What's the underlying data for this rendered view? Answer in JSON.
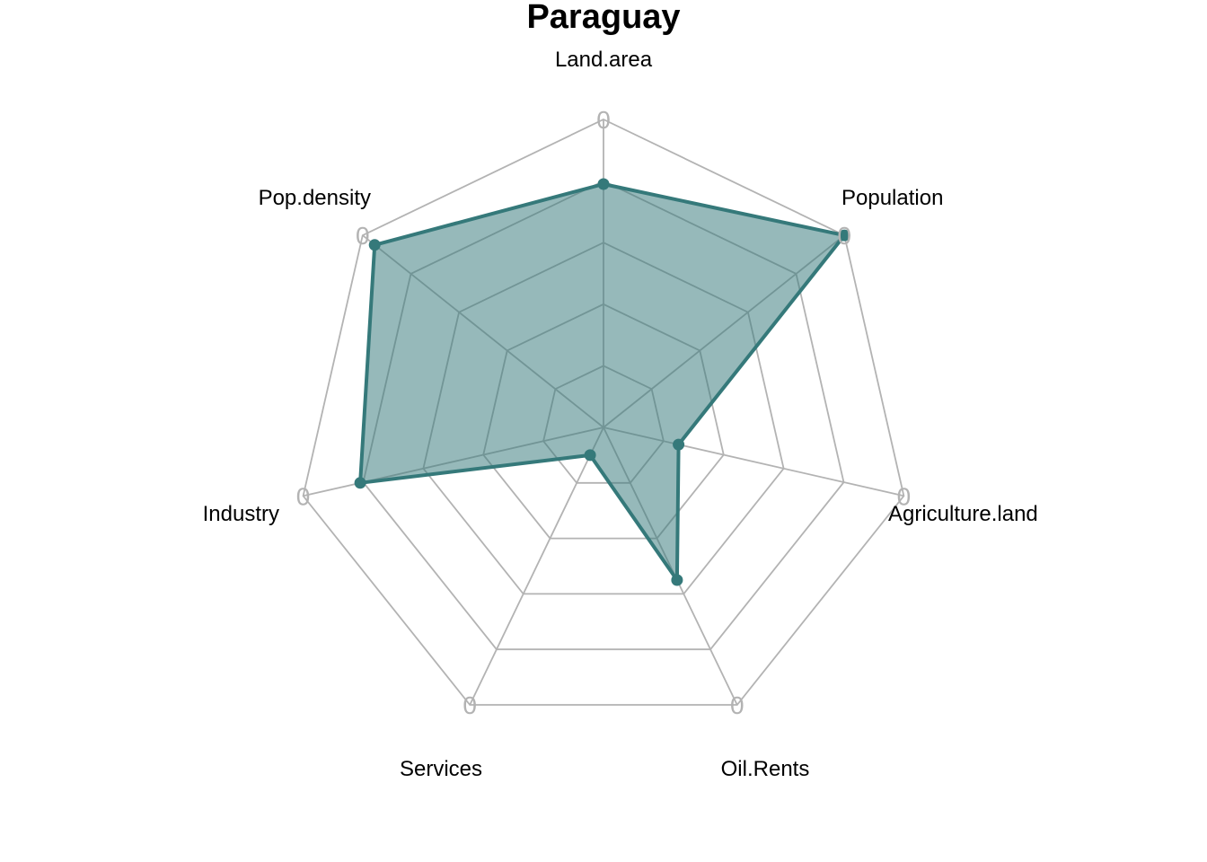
{
  "chart_data": {
    "type": "radar",
    "title": "Paraguay",
    "axes": [
      "Land.area",
      "Population",
      "Agriculture.land",
      "Oil.Rents",
      "Services",
      "Industry",
      "Pop.density"
    ],
    "grid_levels": 5,
    "grid_tick_label": "0",
    "range": [
      0,
      1
    ],
    "series": [
      {
        "values": [
          0.79,
          1.0,
          0.25,
          0.55,
          0.1,
          0.81,
          0.95
        ],
        "color": "#35797a",
        "fill": "#35797a",
        "fill_opacity": 0.52
      }
    ],
    "grid_color": "#b3b3b3",
    "grid": true,
    "legend": "none"
  }
}
